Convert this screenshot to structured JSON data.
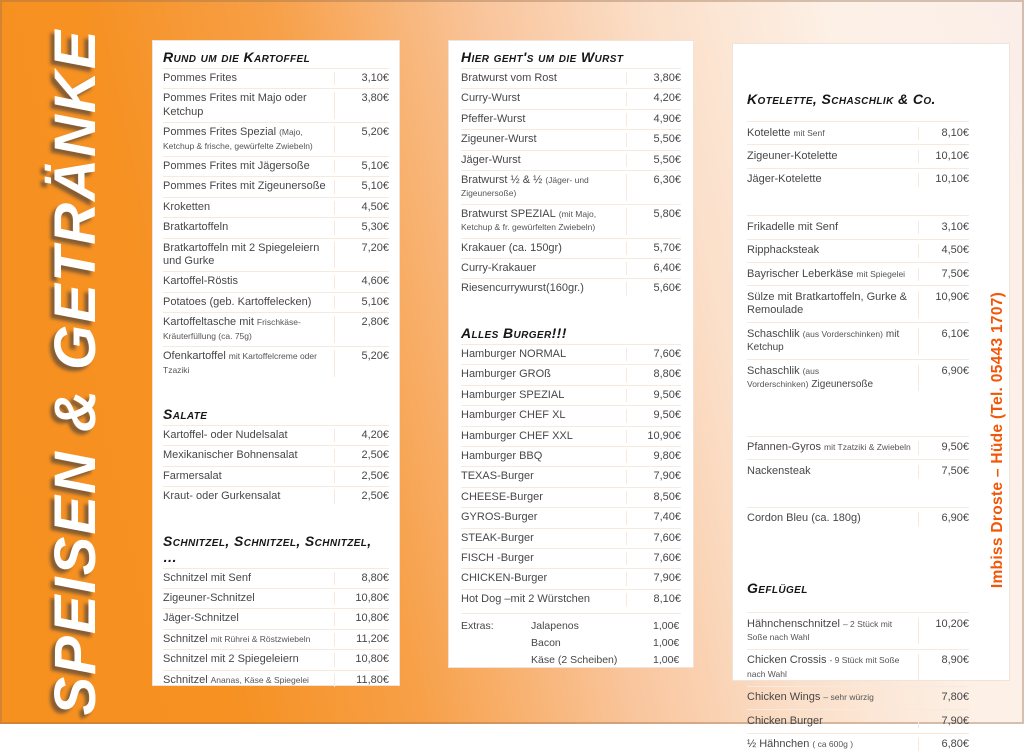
{
  "page": {
    "left_banner": "SPEISEN & GETRÄNKE",
    "right_banner": "Imbiss Droste  –  Hüde (Tel. 05443 1707)"
  },
  "colors": {
    "background_orange": "#F6921E",
    "panel_background": "#FFFFFF",
    "banner_text": "#FFFFFF",
    "contact_text": "#F25607",
    "header_text": "#161616",
    "item_text": "#474747"
  },
  "panels": [
    {
      "sections": [
        {
          "title": "Rund um die Kartoffel",
          "items": [
            {
              "name": "Pommes Frites",
              "price": "3,10€"
            },
            {
              "name": "Pommes Frites mit Majo oder Ketchup",
              "price": "3,80€"
            },
            {
              "name": "Pommes Frites Spezial",
              "small": "(Majo, Ketchup & frische, gewürfelte Zwiebeln)",
              "price": "5,20€"
            },
            {
              "name": "Pommes Frites mit Jägersoße",
              "price": "5,10€"
            },
            {
              "name": "Pommes Frites mit Zigeunersoße",
              "price": "5,10€"
            },
            {
              "name": "Kroketten",
              "price": "4,50€"
            },
            {
              "name": "Bratkartoffeln",
              "price": "5,30€"
            },
            {
              "name": "Bratkartoffeln mit 2 Spiegeleiern und Gurke",
              "price": "7,20€"
            },
            {
              "name": "Kartoffel-Röstis",
              "price": "4,60€"
            },
            {
              "name": "Potatoes (geb. Kartoffelecken)",
              "price": "5,10€"
            },
            {
              "name": "Kartoffeltasche mit",
              "small": "Frischkäse-Kräuterfüllung (ca. 75g)",
              "price": "2,80€"
            },
            {
              "name": "Ofenkartoffel",
              "small": "mit Kartoffelcreme oder Tzaziki",
              "price": "5,20€"
            }
          ]
        },
        {
          "title": "Salate",
          "items": [
            {
              "name": "Kartoffel- oder Nudelsalat",
              "price": "4,20€"
            },
            {
              "name": "Mexikanischer Bohnensalat",
              "price": "2,50€"
            },
            {
              "name": "Farmersalat",
              "price": "2,50€"
            },
            {
              "name": "Kraut- oder Gurkensalat",
              "price": "2,50€"
            }
          ]
        },
        {
          "title": "Schnitzel, Schnitzel, Schnitzel, …",
          "items": [
            {
              "name": "Schnitzel mit Senf",
              "price": "8,80€"
            },
            {
              "name": "Zigeuner-Schnitzel",
              "price": "10,80€"
            },
            {
              "name": "Jäger-Schnitzel",
              "price": "10,80€"
            },
            {
              "name": "Schnitzel",
              "small": "mit Rührei & Röstzwiebeln",
              "price": "11,20€"
            },
            {
              "name": "Schnitzel mit 2 Spiegeleiern",
              "price": "10,80€"
            },
            {
              "name": "Schnitzel",
              "small": "Ananas, Käse & Spiegelei",
              "price": "11,80€"
            }
          ]
        }
      ]
    },
    {
      "sections": [
        {
          "title": "Hier geht's um die Wurst",
          "items": [
            {
              "name": "Bratwurst vom Rost",
              "price": "3,80€"
            },
            {
              "name": "Curry-Wurst",
              "price": "4,20€"
            },
            {
              "name": "Pfeffer-Wurst",
              "price": "4,90€"
            },
            {
              "name": "Zigeuner-Wurst",
              "price": "5,50€"
            },
            {
              "name": "Jäger-Wurst",
              "price": "5,50€"
            },
            {
              "name": "Bratwurst ½ & ½",
              "small": "(Jäger- und Zigeunersoße)",
              "price": "6,30€"
            },
            {
              "name": "Bratwurst SPEZIAL",
              "small": "(mit Majo, Ketchup & fr. gewürfelten Zwiebeln)",
              "price": "5,80€"
            },
            {
              "name": "Krakauer (ca. 150gr)",
              "price": "5,70€"
            },
            {
              "name": "Curry-Krakauer",
              "price": "6,40€"
            },
            {
              "name": "Riesencurrywurst(160gr.)",
              "price": "5,60€"
            }
          ]
        },
        {
          "title": "Alles Burger!!!",
          "items": [
            {
              "name": "Hamburger NORMAL",
              "price": "7,60€"
            },
            {
              "name": "Hamburger GROß",
              "price": "8,80€"
            },
            {
              "name": "Hamburger SPEZIAL",
              "price": "9,50€"
            },
            {
              "name": "Hamburger CHEF XL",
              "price": "9,50€"
            },
            {
              "name": "Hamburger CHEF XXL",
              "price": "10,90€"
            },
            {
              "name": "Hamburger BBQ",
              "price": "9,80€"
            },
            {
              "name": "TEXAS-Burger",
              "price": "7,90€"
            },
            {
              "name": "CHEESE-Burger",
              "price": "8,50€"
            },
            {
              "name": "GYROS-Burger",
              "price": "7,40€"
            },
            {
              "name": "STEAK-Burger",
              "price": "7,60€"
            },
            {
              "name": "FISCH -Burger",
              "price": "7,60€"
            },
            {
              "name": "CHICKEN-Burger",
              "price": "7,90€"
            },
            {
              "name": "Hot Dog –mit 2 Würstchen",
              "price": "8,10€"
            }
          ],
          "extras": [
            {
              "prefix": "Extras:",
              "name": "Jalapenos",
              "price": "1,00€"
            },
            {
              "name": "Bacon",
              "price": "1,00€"
            },
            {
              "name": "Käse (2 Scheiben)",
              "price": "1,00€"
            }
          ]
        }
      ]
    },
    {
      "sections": [
        {
          "title": "Kotelette, Schaschlik & Co.",
          "items": [
            {
              "name": "Kotelette",
              "small": "mit Senf",
              "price": "8,10€"
            },
            {
              "name": "Zigeuner-Kotelette",
              "price": "10,10€"
            },
            {
              "name": "Jäger-Kotelette",
              "price": "10,10€"
            },
            {
              "name": "Frikadelle mit Senf",
              "price": "3,10€",
              "gap_before": "md"
            },
            {
              "name": "Ripphacksteak",
              "price": "4,50€"
            },
            {
              "name": "Bayrischer Leberkäse",
              "small": "mit Spiegelei",
              "price": "7,50€"
            },
            {
              "name": "Sülze mit Bratkartoffeln, Gurke & Remoulade",
              "price": "10,90€"
            },
            {
              "name": "Schaschlik",
              "small": "(aus Vorderschinken)",
              "suffix": "mit Ketchup",
              "price": "6,10€"
            },
            {
              "name": "Schaschlik",
              "small": "(aus Vorderschinken)",
              "suffix": "Zigeunersoße",
              "price": "6,90€"
            },
            {
              "name": "Pfannen-Gyros",
              "small": "mit Tzatziki & Zwiebeln",
              "price": "9,50€",
              "gap_before": "lg"
            },
            {
              "name": "Nackensteak",
              "price": "7,50€"
            },
            {
              "name": "Cordon Bleu  (ca. 180g)",
              "price": "6,90€",
              "gap_before": "md"
            }
          ]
        },
        {
          "title": "Geflügel",
          "items": [
            {
              "name": "Hähnchenschnitzel",
              "small": "– 2 Stück mit Soße nach Wahl",
              "price": "10,20€",
              "gap_before": "sm"
            },
            {
              "name": "Chicken Crossis",
              "small": "- 9 Stück mit Soße nach Wahl",
              "price": "8,90€"
            },
            {
              "name": "Chicken Wings",
              "small": "– sehr würzig",
              "price": "7,80€"
            },
            {
              "name": "Chicken Burger",
              "price": "7,90€"
            },
            {
              "name": "½ Hähnchen",
              "small": "( ca 600g )",
              "price": "6,80€"
            }
          ]
        }
      ]
    }
  ]
}
